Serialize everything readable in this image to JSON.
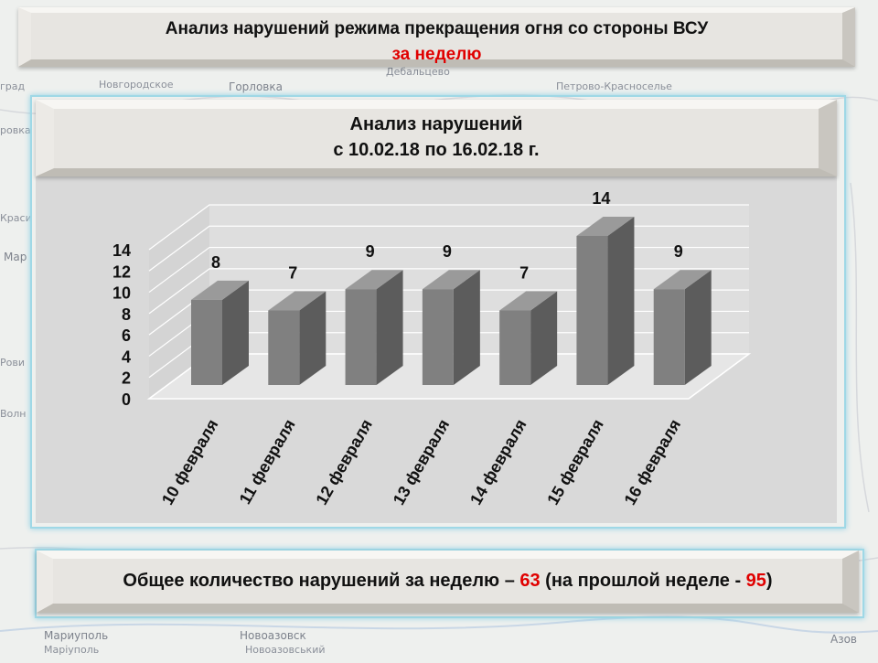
{
  "header": {
    "title": "Анализ нарушений режима прекращения огня со стороны ВСУ",
    "subtitle": "за неделю"
  },
  "panel": {
    "title_line1": "Анализ нарушений",
    "title_line2": "с 10.02.18 по 16.02.18 г."
  },
  "map_labels": [
    "град",
    "Новгородское",
    "Горловка",
    "Дебальцево",
    "Петрово-Красноселье",
    "ровка",
    "Краси",
    "Мар",
    "Волн",
    "Рови",
    "Новоазовск",
    "Мариуполь",
    "Азов",
    "Новоазовський",
    "Маріуполь"
  ],
  "chart_data": {
    "type": "bar",
    "style": "3d-bar",
    "categories": [
      "10 февраля",
      "11 февраля",
      "12 февраля",
      "13 февраля",
      "14 февраля",
      "15 февраля",
      "16 февраля"
    ],
    "values": [
      8,
      7,
      9,
      9,
      7,
      14,
      9
    ],
    "data_labels": [
      "8",
      "7",
      "9",
      "9",
      "7",
      "14",
      "9"
    ],
    "yticks": [
      "0",
      "2",
      "4",
      "6",
      "8",
      "10",
      "12",
      "14"
    ],
    "ylim": [
      0,
      14
    ],
    "grid": true,
    "bar_color": "#808080",
    "background_color": "#d9d9d9"
  },
  "summary": {
    "text_before": "Общее количество нарушений за неделю – ",
    "this_week": "63",
    "text_middle": " (на прошлой неделе - ",
    "last_week": "95",
    "text_after": ")"
  },
  "colors": {
    "accent_red": "#e00000",
    "frame_cyan": "#9fd8e6"
  }
}
